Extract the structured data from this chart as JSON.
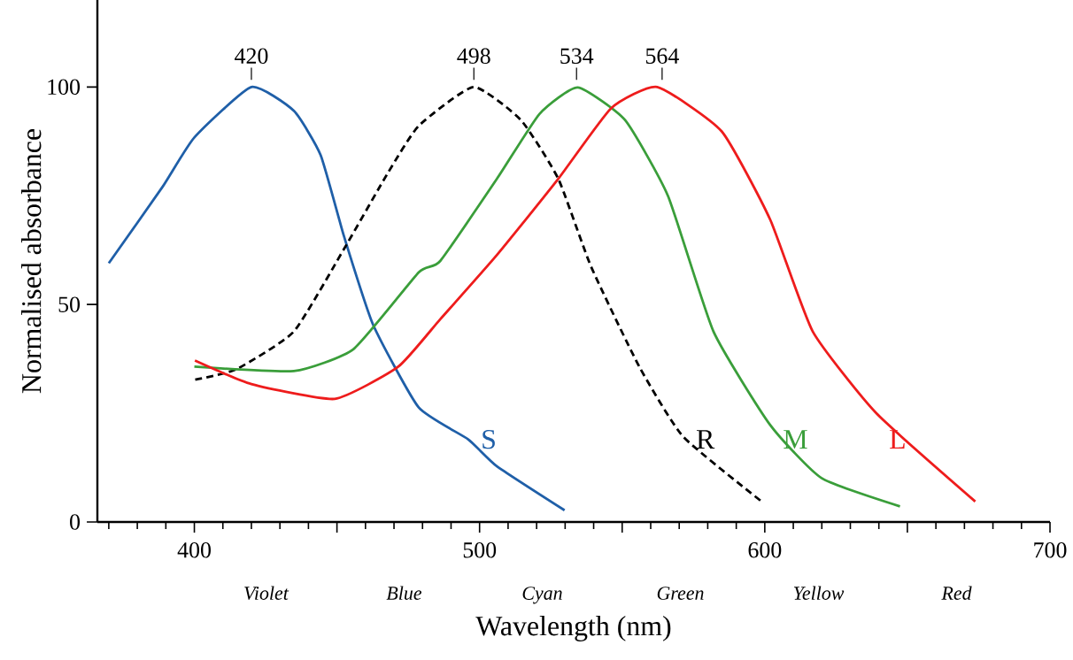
{
  "chart_data": {
    "type": "line",
    "xlabel": "Wavelength (nm)",
    "ylabel": "Normalised absorbance",
    "xlim": [
      366,
      700
    ],
    "ylim": [
      0,
      120
    ],
    "xticks": [
      400,
      500,
      600,
      700,
      {
        "value": 370,
        "label": null
      },
      {
        "value": 380,
        "label": null
      },
      {
        "value": 390,
        "label": null
      },
      {
        "value": 410,
        "label": null
      },
      {
        "value": 420,
        "label": null
      },
      {
        "value": 430,
        "label": null
      },
      {
        "value": 440,
        "label": null
      },
      {
        "value": 450,
        "label": null
      },
      {
        "value": 460,
        "label": null
      },
      {
        "value": 470,
        "label": null
      },
      {
        "value": 480,
        "label": null
      },
      {
        "value": 490,
        "label": null
      },
      {
        "value": 510,
        "label": null
      },
      {
        "value": 520,
        "label": null
      },
      {
        "value": 530,
        "label": null
      },
      {
        "value": 540,
        "label": null
      },
      {
        "value": 550,
        "label": null
      },
      {
        "value": 560,
        "label": null
      },
      {
        "value": 570,
        "label": null
      },
      {
        "value": 580,
        "label": null
      },
      {
        "value": 590,
        "label": null
      },
      {
        "value": 610,
        "label": null
      },
      {
        "value": 620,
        "label": null
      },
      {
        "value": 630,
        "label": null
      },
      {
        "value": 640,
        "label": null
      },
      {
        "value": 650,
        "label": null
      },
      {
        "value": 660,
        "label": null
      },
      {
        "value": 670,
        "label": null
      },
      {
        "value": 680,
        "label": null
      },
      {
        "value": 690,
        "label": null
      }
    ],
    "yticks": [
      0,
      50,
      100
    ],
    "grid": false,
    "legend": false,
    "marker": "none",
    "series": [
      {
        "name": "S",
        "color": "#1f5fa8",
        "line_style": "solid",
        "x": [
          370,
          388.7,
          400,
          420,
          434.9,
          444.3,
          452.5,
          462.7,
          478.7,
          496,
          506.1,
          529.8
        ],
        "values": [
          59.5,
          76.9,
          88.4,
          100,
          94.5,
          84.3,
          65.6,
          45.3,
          26.3,
          19,
          12.8,
          2.7
        ]
      },
      {
        "name": "R",
        "color": "#000000",
        "line_style": "dashed",
        "x": [
          400.3,
          414.7,
          434.9,
          452.5,
          467.9,
          478.7,
          497.9,
          514.5,
          527.6,
          539.1,
          556,
          571.4,
          598.9
        ],
        "values": [
          32.7,
          35.1,
          43.8,
          62.8,
          80.3,
          91.1,
          100,
          92.4,
          78.9,
          58.7,
          35.7,
          19.6,
          4.7
        ]
      },
      {
        "name": "M",
        "color": "#3a9e3a",
        "line_style": "solid",
        "x": [
          400,
          434.9,
          455.9,
          478.7,
          486.2,
          506.1,
          521,
          534.4,
          551,
          566.1,
          582,
          601.9,
          619.9,
          647.4
        ],
        "values": [
          35.7,
          34.7,
          39.8,
          57.4,
          60,
          78.9,
          93.8,
          99.9,
          92.4,
          74.9,
          43.8,
          22.3,
          10.1,
          3.6
        ]
      },
      {
        "name": "L",
        "color": "#ee1c1c",
        "line_style": "solid",
        "x": [
          400.2,
          420,
          449.2,
          471.5,
          486.2,
          506.1,
          527.6,
          546.1,
          562.3,
          584.9,
          601.9,
          616.8,
          639.1,
          673.8
        ],
        "values": [
          37.1,
          31.7,
          28.3,
          35.7,
          46.6,
          61.4,
          78.9,
          95.1,
          100,
          89.8,
          69.5,
          43.8,
          25,
          4.7
        ]
      }
    ],
    "annotations": [
      {
        "text": "420",
        "x": 420,
        "y": 100
      },
      {
        "text": "498",
        "x": 498,
        "y": 100
      },
      {
        "text": "534",
        "x": 534,
        "y": 100
      },
      {
        "text": "564",
        "x": 564,
        "y": 100
      },
      "Violet",
      "Blue",
      "Cyan",
      "Green",
      "Yellow",
      "Red"
    ]
  }
}
